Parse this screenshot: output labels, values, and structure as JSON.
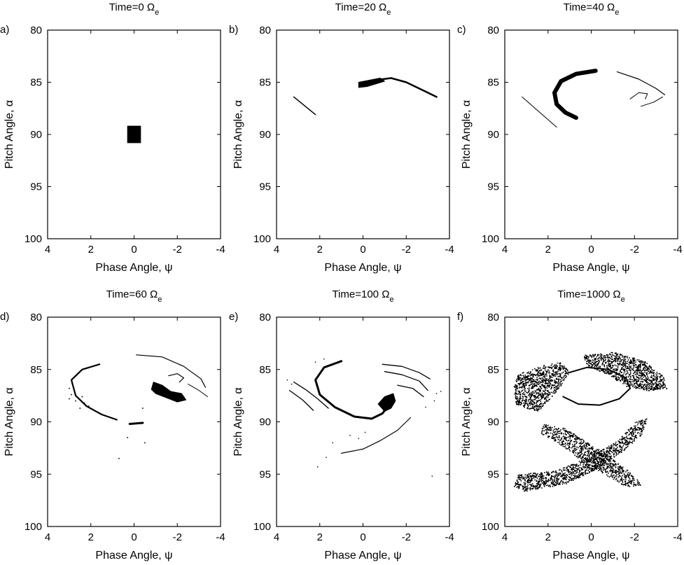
{
  "chart_data": [
    {
      "type": "scatter",
      "panel": "a)",
      "title": "Time=0",
      "title_symbol": "Ω",
      "title_subscript": "e",
      "xlabel": "Phase Angle, ψ",
      "ylabel": "Pitch Angle, α",
      "xlim": [
        4,
        -4
      ],
      "ylim": [
        80,
        100
      ],
      "xticks": [
        "4",
        "2",
        "0",
        "-2",
        "-4"
      ],
      "yticks": [
        "80",
        "85",
        "90",
        "95",
        "100"
      ],
      "regions": [
        {
          "kind": "block",
          "points": [
            [
              0.3,
              89.2
            ],
            [
              -0.3,
              89.2
            ],
            [
              -0.3,
              90.8
            ],
            [
              0.3,
              90.8
            ]
          ]
        }
      ]
    },
    {
      "type": "scatter",
      "panel": "b)",
      "title": "Time=20",
      "title_symbol": "Ω",
      "title_subscript": "e",
      "xlabel": "Phase Angle, ψ",
      "ylabel": "Pitch Angle, α",
      "xlim": [
        4,
        -4
      ],
      "ylim": [
        80,
        100
      ],
      "xticks": [
        "4",
        "2",
        "0",
        "-2",
        "-4"
      ],
      "yticks": [
        "80",
        "85",
        "90",
        "95",
        "100"
      ],
      "regions": [
        {
          "kind": "line",
          "width": 1.5,
          "points": [
            [
              3.2,
              86.4
            ],
            [
              2.2,
              88.1
            ]
          ]
        },
        {
          "kind": "band",
          "width": 2.5,
          "points": [
            [
              0.0,
              85.2
            ],
            [
              -0.6,
              84.8
            ],
            [
              -1.3,
              84.6
            ],
            [
              -2.0,
              85.0
            ],
            [
              -2.8,
              85.8
            ],
            [
              -3.4,
              86.4
            ]
          ]
        },
        {
          "kind": "blob",
          "points": [
            [
              0.2,
              85.0
            ],
            [
              -0.8,
              84.6
            ],
            [
              -1.0,
              84.9
            ],
            [
              -0.2,
              85.4
            ],
            [
              0.2,
              85.5
            ]
          ]
        }
      ]
    },
    {
      "type": "scatter",
      "panel": "c)",
      "title": "Time=40",
      "title_symbol": "Ω",
      "title_subscript": "e",
      "xlabel": "Phase Angle, ψ",
      "ylabel": "Pitch Angle, α",
      "xlim": [
        4,
        -4
      ],
      "ylim": [
        80,
        100
      ],
      "xticks": [
        "4",
        "2",
        "0",
        "-2",
        "-4"
      ],
      "yticks": [
        "80",
        "85",
        "90",
        "95",
        "100"
      ],
      "regions": [
        {
          "kind": "band",
          "width": 6,
          "points": [
            [
              0.7,
              88.4
            ],
            [
              1.2,
              87.9
            ],
            [
              1.6,
              87.1
            ],
            [
              1.7,
              86.0
            ],
            [
              1.4,
              84.9
            ],
            [
              0.7,
              84.2
            ],
            [
              -0.2,
              83.9
            ]
          ]
        },
        {
          "kind": "line",
          "width": 1,
          "points": [
            [
              3.2,
              86.4
            ],
            [
              1.6,
              89.3
            ]
          ]
        },
        {
          "kind": "line",
          "width": 1.2,
          "points": [
            [
              -1.2,
              84.0
            ],
            [
              -2.2,
              84.7
            ],
            [
              -3.0,
              85.6
            ],
            [
              -3.4,
              86.2
            ]
          ]
        },
        {
          "kind": "line",
          "width": 1,
          "points": [
            [
              -1.8,
              86.6
            ],
            [
              -2.2,
              86.0
            ],
            [
              -2.6,
              86.1
            ],
            [
              -2.5,
              86.6
            ]
          ]
        },
        {
          "kind": "line",
          "width": 1,
          "points": [
            [
              -2.3,
              87.3
            ],
            [
              -2.9,
              86.9
            ],
            [
              -3.3,
              86.4
            ]
          ]
        }
      ]
    },
    {
      "type": "scatter",
      "panel": "d)",
      "title": "Time=60",
      "title_symbol": "Ω",
      "title_subscript": "e",
      "xlabel": "Phase Angle, ψ",
      "ylabel": "Pitch Angle, α",
      "xlim": [
        4,
        -4
      ],
      "ylim": [
        80,
        100
      ],
      "xticks": [
        "4",
        "2",
        "0",
        "-2",
        "-4"
      ],
      "yticks": [
        "80",
        "85",
        "90",
        "95",
        "100"
      ],
      "regions": [
        {
          "kind": "band",
          "width": 2.2,
          "points": [
            [
              1.6,
              84.5
            ],
            [
              2.4,
              85.0
            ],
            [
              2.9,
              86.0
            ],
            [
              2.7,
              87.5
            ],
            [
              2.2,
              88.5
            ],
            [
              1.5,
              89.3
            ],
            [
              0.8,
              89.8
            ]
          ]
        },
        {
          "kind": "line",
          "width": 3,
          "points": [
            [
              0.2,
              90.2
            ],
            [
              -0.4,
              90.1
            ]
          ]
        },
        {
          "kind": "blob",
          "points": [
            [
              -0.9,
              86.2
            ],
            [
              -1.3,
              86.5
            ],
            [
              -1.7,
              87.1
            ],
            [
              -2.2,
              87.3
            ],
            [
              -2.4,
              87.9
            ],
            [
              -2.0,
              88.1
            ],
            [
              -1.5,
              87.7
            ],
            [
              -1.0,
              87.3
            ],
            [
              -0.8,
              86.9
            ]
          ]
        },
        {
          "kind": "line",
          "width": 1.2,
          "points": [
            [
              -0.1,
              83.6
            ],
            [
              -1.3,
              83.8
            ],
            [
              -2.3,
              84.7
            ],
            [
              -3.1,
              85.9
            ],
            [
              -3.3,
              86.7
            ]
          ]
        },
        {
          "kind": "line",
          "width": 1.2,
          "points": [
            [
              -1.6,
              85.6
            ],
            [
              -2.0,
              85.4
            ],
            [
              -2.3,
              85.8
            ],
            [
              -2.1,
              86.2
            ]
          ]
        },
        {
          "kind": "line",
          "width": 1,
          "points": [
            [
              -2.5,
              86.4
            ],
            [
              -3.0,
              87.0
            ],
            [
              -3.4,
              87.6
            ]
          ]
        },
        {
          "kind": "points",
          "size": 1.6,
          "points": [
            [
              3.0,
              86.8
            ],
            [
              2.9,
              87.4
            ],
            [
              2.7,
              88.0
            ],
            [
              2.4,
              87.6
            ],
            [
              2.3,
              88.2
            ],
            [
              2.1,
              88.5
            ],
            [
              3.0,
              87.8
            ],
            [
              2.5,
              88.7
            ],
            [
              0.3,
              91.5
            ],
            [
              0.7,
              93.5
            ],
            [
              -0.5,
              92.0
            ],
            [
              -0.4,
              88.7
            ]
          ]
        }
      ]
    },
    {
      "type": "scatter",
      "panel": "e)",
      "title": "Time=100",
      "title_symbol": "Ω",
      "title_subscript": "e",
      "xlabel": "Phase Angle, ψ",
      "ylabel": "Pitch Angle, α",
      "xlim": [
        4,
        -4
      ],
      "ylim": [
        80,
        100
      ],
      "xticks": [
        "4",
        "2",
        "0",
        "-2",
        "-4"
      ],
      "yticks": [
        "80",
        "85",
        "90",
        "95",
        "100"
      ],
      "regions": [
        {
          "kind": "band",
          "width": 3,
          "points": [
            [
              1.0,
              84.2
            ],
            [
              1.8,
              84.8
            ],
            [
              2.2,
              86.0
            ],
            [
              2.0,
              87.4
            ],
            [
              1.3,
              88.6
            ],
            [
              0.4,
              89.5
            ],
            [
              -0.4,
              89.7
            ],
            [
              -0.9,
              89.2
            ],
            [
              -1.2,
              88.4
            ],
            [
              -1.3,
              87.6
            ]
          ]
        },
        {
          "kind": "blob",
          "points": [
            [
              -0.7,
              88.3
            ],
            [
              -1.0,
              87.6
            ],
            [
              -1.4,
              87.3
            ],
            [
              -1.5,
              88.0
            ],
            [
              -1.3,
              88.7
            ],
            [
              -1.0,
              89.0
            ]
          ]
        },
        {
          "kind": "line",
          "width": 1.3,
          "points": [
            [
              3.2,
              86.2
            ],
            [
              2.6,
              87.0
            ],
            [
              2.1,
              87.8
            ],
            [
              1.6,
              88.7
            ]
          ]
        },
        {
          "kind": "line",
          "width": 1.3,
          "points": [
            [
              3.4,
              87.0
            ],
            [
              2.8,
              87.9
            ],
            [
              2.3,
              88.9
            ]
          ]
        },
        {
          "kind": "line",
          "width": 1.3,
          "points": [
            [
              -0.9,
              84.5
            ],
            [
              -1.8,
              84.7
            ],
            [
              -2.6,
              85.3
            ],
            [
              -3.1,
              85.9
            ]
          ]
        },
        {
          "kind": "line",
          "width": 1.3,
          "points": [
            [
              -1.0,
              85.2
            ],
            [
              -1.8,
              85.5
            ],
            [
              -2.6,
              86.1
            ],
            [
              -3.0,
              87.0
            ]
          ]
        },
        {
          "kind": "line",
          "width": 1.3,
          "points": [
            [
              -1.6,
              86.5
            ],
            [
              -2.3,
              86.8
            ],
            [
              -2.8,
              87.6
            ]
          ]
        },
        {
          "kind": "line",
          "width": 1.2,
          "points": [
            [
              1.0,
              93.0
            ],
            [
              0.0,
              92.6
            ],
            [
              -0.8,
              91.8
            ],
            [
              -1.6,
              90.8
            ],
            [
              -2.2,
              89.6
            ]
          ]
        },
        {
          "kind": "points",
          "size": 1.4,
          "points": [
            [
              0.6,
              91.3
            ],
            [
              0.2,
              91.6
            ],
            [
              1.4,
              92.0
            ],
            [
              1.7,
              93.4
            ],
            [
              2.1,
              94.3
            ],
            [
              -0.1,
              91.0
            ],
            [
              -3.4,
              87.3
            ],
            [
              -3.3,
              88.0
            ],
            [
              -2.9,
              88.6
            ],
            [
              -3.6,
              87.1
            ],
            [
              3.5,
              86.0
            ],
            [
              3.3,
              86.4
            ],
            [
              2.2,
              84.3
            ],
            [
              1.8,
              84.0
            ],
            [
              -3.2,
              95.2
            ]
          ]
        }
      ]
    },
    {
      "type": "scatter",
      "panel": "f)",
      "title": "Time=1000",
      "title_symbol": "Ω",
      "title_subscript": "e",
      "xlabel": "Phase Angle, ψ",
      "ylabel": "Pitch Angle, α",
      "xlim": [
        4,
        -4
      ],
      "ylim": [
        80,
        100
      ],
      "xticks": [
        "4",
        "2",
        "0",
        "-2",
        "-4"
      ],
      "yticks": [
        "80",
        "85",
        "90",
        "95",
        "100"
      ],
      "regions": [
        {
          "kind": "cloud",
          "density": 900,
          "points": [
            [
              3.4,
              85.4
            ],
            [
              2.5,
              84.7
            ],
            [
              1.5,
              84.2
            ],
            [
              1.0,
              85.2
            ],
            [
              1.5,
              86.8
            ],
            [
              2.1,
              88.2
            ],
            [
              2.5,
              89.0
            ],
            [
              3.5,
              88.3
            ],
            [
              3.6,
              86.6
            ]
          ]
        },
        {
          "kind": "cloud",
          "density": 1000,
          "points": [
            [
              0.4,
              83.6
            ],
            [
              -1.0,
              83.3
            ],
            [
              -2.4,
              84.1
            ],
            [
              -3.3,
              85.6
            ],
            [
              -3.5,
              86.8
            ],
            [
              -2.7,
              87.0
            ],
            [
              -1.6,
              86.6
            ],
            [
              -0.7,
              85.4
            ],
            [
              0.2,
              84.6
            ]
          ]
        },
        {
          "kind": "cloud",
          "density": 1100,
          "points": [
            [
              3.4,
              95.0
            ],
            [
              1.6,
              94.6
            ],
            [
              0.2,
              93.4
            ],
            [
              -1.2,
              91.8
            ],
            [
              -2.0,
              90.0
            ],
            [
              -2.6,
              89.6
            ],
            [
              -2.3,
              91.2
            ],
            [
              -1.5,
              92.7
            ],
            [
              -0.3,
              94.4
            ],
            [
              1.2,
              95.9
            ],
            [
              3.1,
              96.6
            ],
            [
              3.6,
              96.1
            ]
          ]
        },
        {
          "kind": "cloud",
          "density": 800,
          "points": [
            [
              2.2,
              90.2
            ],
            [
              1.2,
              90.6
            ],
            [
              0.2,
              91.9
            ],
            [
              -0.8,
              93.2
            ],
            [
              -1.8,
              94.8
            ],
            [
              -2.4,
              96.0
            ],
            [
              -1.6,
              96.2
            ],
            [
              -0.8,
              95.2
            ],
            [
              0.4,
              93.8
            ],
            [
              1.4,
              92.2
            ],
            [
              2.4,
              91.0
            ]
          ]
        },
        {
          "kind": "line",
          "width": 2,
          "points": [
            [
              1.2,
              85.4
            ],
            [
              0.2,
              84.8
            ],
            [
              -0.8,
              85.0
            ],
            [
              -1.6,
              85.8
            ],
            [
              -1.8,
              86.8
            ],
            [
              -1.3,
              87.8
            ],
            [
              -0.4,
              88.4
            ],
            [
              0.6,
              88.3
            ],
            [
              1.3,
              87.6
            ]
          ]
        }
      ]
    }
  ]
}
